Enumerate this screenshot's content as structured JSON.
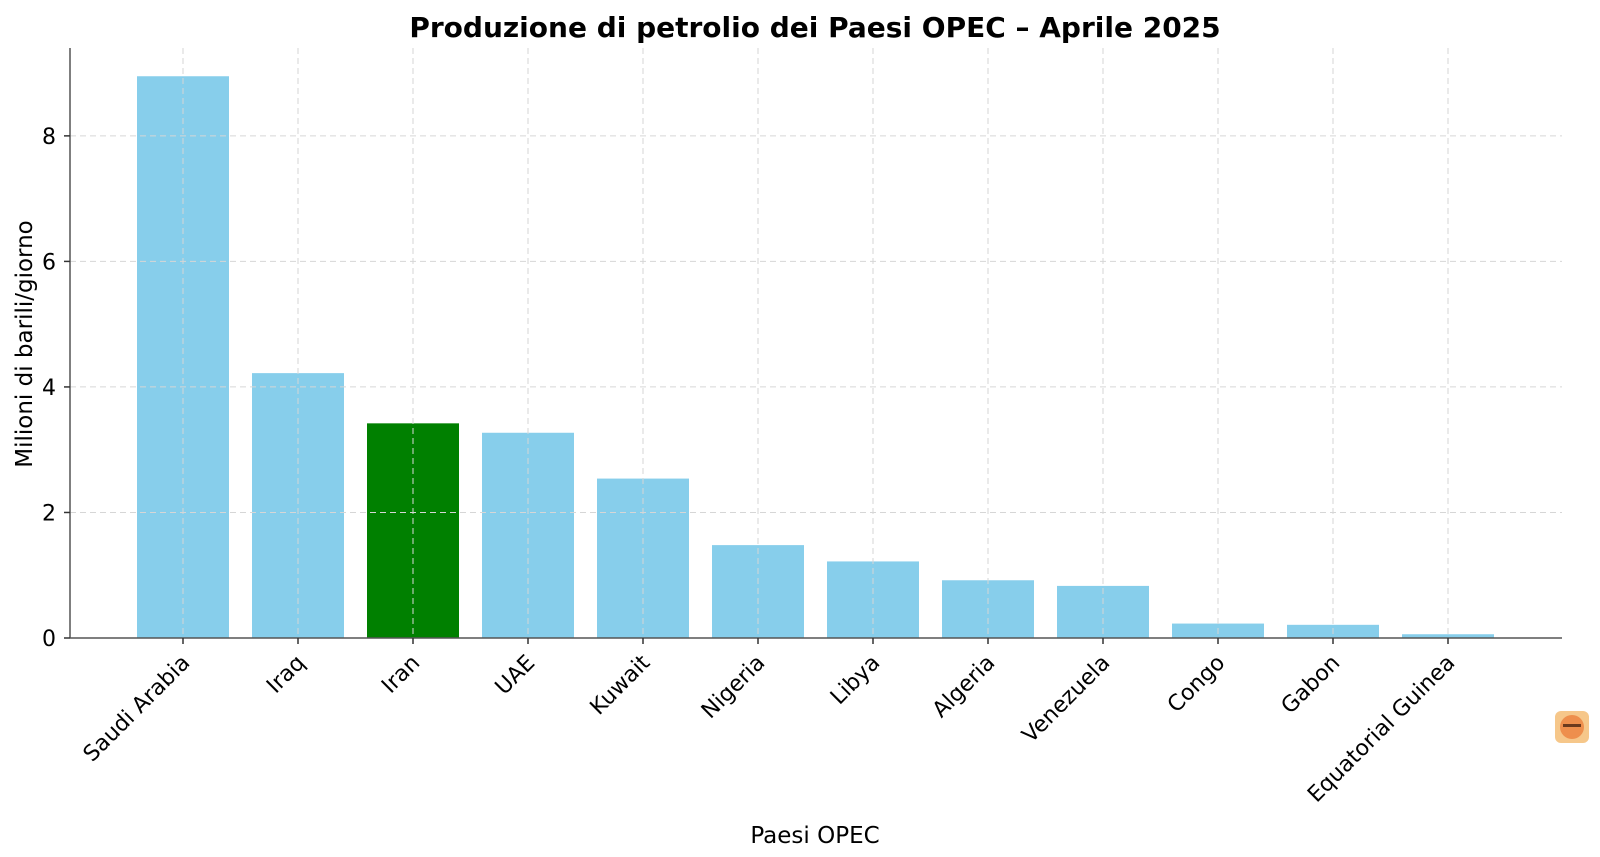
{
  "chart_data": {
    "type": "bar",
    "title": "Produzione di petrolio dei Paesi OPEC – Aprile 2025",
    "xlabel": "Paesi OPEC",
    "ylabel": "Milioni di barili/giorno",
    "categories": [
      "Saudi Arabia",
      "Iraq",
      "Iran",
      "UAE",
      "Kuwait",
      "Nigeria",
      "Libya",
      "Algeria",
      "Venezuela",
      "Congo",
      "Gabon",
      "Equatorial Guinea"
    ],
    "values": [
      8.95,
      4.22,
      3.42,
      3.27,
      2.54,
      1.48,
      1.22,
      0.92,
      0.83,
      0.23,
      0.21,
      0.06
    ],
    "colors": [
      "#87ceeb",
      "#87ceeb",
      "#008000",
      "#87ceeb",
      "#87ceeb",
      "#87ceeb",
      "#87ceeb",
      "#87ceeb",
      "#87ceeb",
      "#87ceeb",
      "#87ceeb",
      "#87ceeb"
    ],
    "highlight_color": "#008000",
    "bar_color": "#87ceeb",
    "yticks": [
      0,
      2,
      4,
      6,
      8
    ],
    "ylim": [
      0,
      9.4
    ],
    "grid": true
  },
  "watermark": {
    "icon": "logo-badge-icon"
  }
}
